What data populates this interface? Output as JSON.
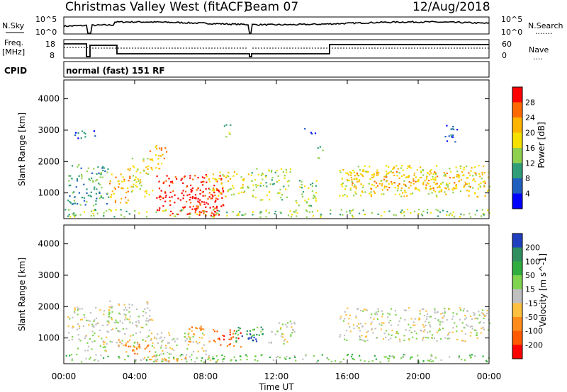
{
  "header": {
    "title": "Christmas Valley West (fitACF)",
    "beam": "Beam 07",
    "date": "12/Aug/2018"
  },
  "strips": {
    "nsky_label": "N.Sky",
    "nsearch_label": "N.Search",
    "nsearch_marker": ".......",
    "top_hi": "10^5",
    "top_lo": "10^0",
    "freq_label_1": "Freq.",
    "freq_label_2": "[MHz]",
    "freq_ticks": [
      "18",
      "8"
    ],
    "nave_label": "Nave",
    "nave_marker": "....",
    "nave_ticks": [
      "60",
      "0"
    ],
    "cpid_label": "CPID",
    "cpid_text": "normal (fast) 151 RF"
  },
  "chart_data": [
    {
      "type": "heatmap",
      "title": "Power",
      "ylabel": "Slant Range [km]",
      "xlabel": "",
      "yticks": [
        "1000",
        "2000",
        "3000",
        "4000"
      ],
      "ylim": [
        180,
        4600
      ],
      "colorbar": {
        "label": "Power [dB]",
        "ticks": [
          "28",
          "24",
          "20",
          "16",
          "12",
          "8",
          "4"
        ],
        "colors": [
          "#ff0000",
          "#ff6a00",
          "#ffb400",
          "#f5e000",
          "#8fd14f",
          "#2f9e78",
          "#1f5fbf",
          "#0000ff"
        ]
      },
      "regions": [
        {
          "t": [
            0.2,
            2.5
          ],
          "r": [
            600,
            2000
          ],
          "level": 2
        },
        {
          "t": [
            2.5,
            3.8
          ],
          "r": [
            700,
            1800
          ],
          "level": 5
        },
        {
          "t": [
            3.8,
            5.0
          ],
          "r": [
            900,
            2200
          ],
          "level": 4
        },
        {
          "t": [
            4.8,
            5.8
          ],
          "r": [
            1800,
            2600
          ],
          "level": 5
        },
        {
          "t": [
            5.2,
            9.0
          ],
          "r": [
            300,
            1600
          ],
          "level": 7
        },
        {
          "t": [
            7.0,
            9.0
          ],
          "r": [
            300,
            1200
          ],
          "level": 7
        },
        {
          "t": [
            8.0,
            10.5
          ],
          "r": [
            900,
            1700
          ],
          "level": 4
        },
        {
          "t": [
            10.5,
            12.8
          ],
          "r": [
            800,
            1800
          ],
          "level": 3
        },
        {
          "t": [
            13.0,
            14.3
          ],
          "r": [
            600,
            1500
          ],
          "level": 3
        },
        {
          "t": [
            14.2,
            14.6
          ],
          "r": [
            2100,
            2500
          ],
          "level": 2
        },
        {
          "t": [
            15.5,
            24.0
          ],
          "r": [
            900,
            1900
          ],
          "level": 4
        },
        {
          "t": [
            16.0,
            24.0
          ],
          "r": [
            1100,
            1700
          ],
          "level": 5
        },
        {
          "t": [
            0.0,
            24.0
          ],
          "r": [
            250,
            500
          ],
          "level": 3
        },
        {
          "t": [
            0.5,
            1.8
          ],
          "r": [
            2700,
            3000
          ],
          "level": 1
        },
        {
          "t": [
            9.0,
            9.5
          ],
          "r": [
            2800,
            3200
          ],
          "level": 3
        },
        {
          "t": [
            13.5,
            14.2
          ],
          "r": [
            2900,
            3100
          ],
          "level": 1
        },
        {
          "t": [
            21.5,
            22.2
          ],
          "r": [
            2600,
            3300
          ],
          "level": 1
        }
      ]
    },
    {
      "type": "heatmap",
      "title": "Velocity",
      "ylabel": "Slant Range [km]",
      "xlabel": "Time UT",
      "xticks": [
        "00:00",
        "04:00",
        "08:00",
        "12:00",
        "16:00",
        "20:00",
        "00:00"
      ],
      "yticks": [
        "1000",
        "2000",
        "3000",
        "4000"
      ],
      "ylim": [
        180,
        4600
      ],
      "colorbar": {
        "label": "Velocity [m s^-1]",
        "ticks": [
          "200",
          "100",
          "50",
          "15",
          "-15",
          "-50",
          "-100",
          "-200"
        ],
        "colors": [
          "#1f3fbf",
          "#2f8f5f",
          "#2fae3f",
          "#7fd44f",
          "#c0c0c0",
          "#ffc040",
          "#ff8c1a",
          "#ff5a00",
          "#ff0000"
        ]
      },
      "regions": [
        {
          "t": [
            0.2,
            2.5
          ],
          "r": [
            600,
            2000
          ],
          "level": 4
        },
        {
          "t": [
            2.5,
            5.0
          ],
          "r": [
            700,
            2200
          ],
          "level": 4
        },
        {
          "t": [
            3.0,
            5.0
          ],
          "r": [
            500,
            1000
          ],
          "level": 6
        },
        {
          "t": [
            5.0,
            8.0
          ],
          "r": [
            400,
            1200
          ],
          "level": 4
        },
        {
          "t": [
            7.0,
            8.5
          ],
          "r": [
            900,
            1400
          ],
          "level": 6
        },
        {
          "t": [
            8.5,
            10.0
          ],
          "r": [
            700,
            1300
          ],
          "level": 7
        },
        {
          "t": [
            9.5,
            11.5
          ],
          "r": [
            900,
            1400
          ],
          "level": 2
        },
        {
          "t": [
            10.0,
            11.0
          ],
          "r": [
            900,
            1200
          ],
          "level": 0
        },
        {
          "t": [
            11.5,
            13.0
          ],
          "r": [
            800,
            1600
          ],
          "level": 4
        },
        {
          "t": [
            15.5,
            24.0
          ],
          "r": [
            900,
            2000
          ],
          "level": 4
        },
        {
          "t": [
            0.0,
            24.0
          ],
          "r": [
            250,
            500
          ],
          "level": 3
        },
        {
          "t": [
            4.0,
            9.0
          ],
          "r": [
            250,
            450
          ],
          "level": 5
        }
      ]
    }
  ]
}
